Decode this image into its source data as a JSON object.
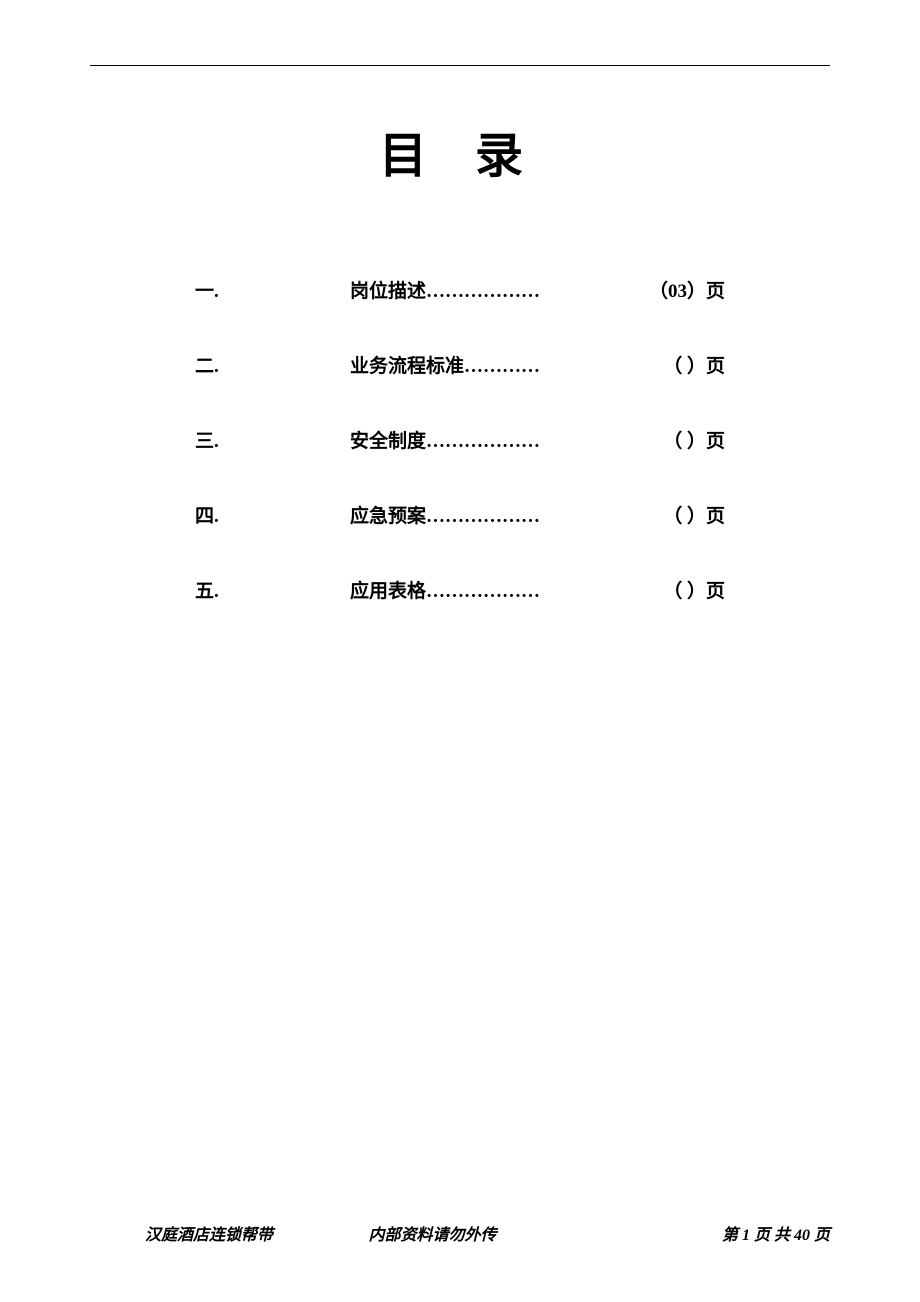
{
  "title": "目 录",
  "toc": {
    "items": [
      {
        "num": "一.",
        "label": "岗位描述",
        "dots": "………………",
        "page": "（03）页"
      },
      {
        "num": "二.",
        "label": "业务流程标准",
        "dots": "…………",
        "page": "（  ）页"
      },
      {
        "num": "三.",
        "label": "安全制度",
        "dots": "………………",
        "page": "（  ）页"
      },
      {
        "num": "四.",
        "label": "应急预案",
        "dots": "………………",
        "page": "（  ）页"
      },
      {
        "num": "五.",
        "label": "应用表格",
        "dots": "………………",
        "page": "（  ）页"
      }
    ]
  },
  "footer": {
    "left": "汉庭酒店连锁帮带",
    "center": "内部资料请勿外传",
    "right_prefix": "第 ",
    "right_cur": "1",
    "right_mid": " 页 共 ",
    "right_total": "40",
    "right_suffix": " 页"
  }
}
